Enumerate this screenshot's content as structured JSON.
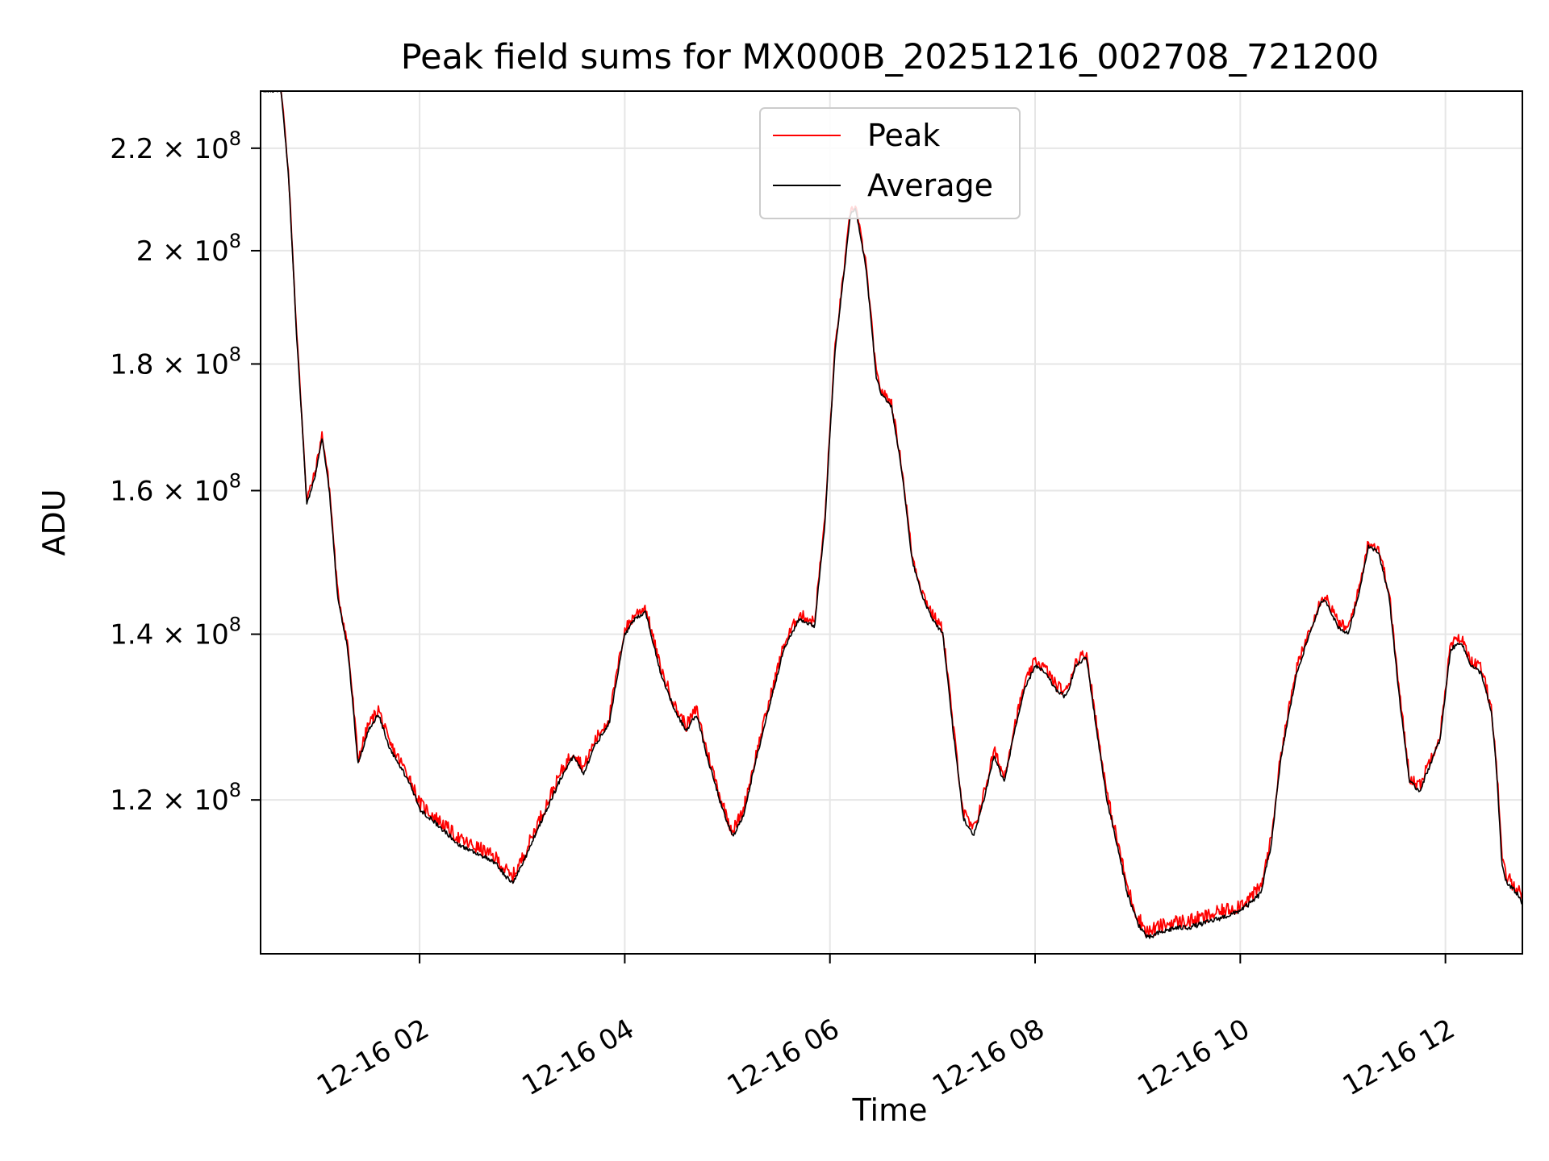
{
  "chart_data": {
    "type": "line",
    "title": "Peak field sums for MX000B_20251216_002708_721200",
    "xlabel": "Time",
    "ylabel": "ADU",
    "yscale": "log",
    "grid": true,
    "legend_position": "top-center",
    "x_range_hours": [
      0.45,
      12.75
    ],
    "ylim": [
      104000000,
      232000000
    ],
    "x_ticks": [
      {
        "hour": 2,
        "label": "12-16 02"
      },
      {
        "hour": 4,
        "label": "12-16 04"
      },
      {
        "hour": 6,
        "label": "12-16 06"
      },
      {
        "hour": 8,
        "label": "12-16 08"
      },
      {
        "hour": 10,
        "label": "12-16 10"
      },
      {
        "hour": 12,
        "label": "12-16 12"
      }
    ],
    "y_ticks": [
      {
        "value": 120000000,
        "mantissa": "1.2",
        "exp": "8"
      },
      {
        "value": 140000000,
        "mantissa": "1.4",
        "exp": "8"
      },
      {
        "value": 160000000,
        "mantissa": "1.6",
        "exp": "8"
      },
      {
        "value": 180000000,
        "mantissa": "1.8",
        "exp": "8"
      },
      {
        "value": 200000000,
        "mantissa": "2",
        "exp": "8"
      },
      {
        "value": 220000000,
        "mantissa": "2.2",
        "exp": "8"
      }
    ],
    "tick_times_sign": "×",
    "tick_base": "10",
    "series": [
      {
        "name": "Peak",
        "color": "#ff0000",
        "offset": 600000,
        "noise": 1500000
      },
      {
        "name": "Average",
        "color": "#000000",
        "offset": 0,
        "noise": 500000
      }
    ],
    "anchor_points_hours_adu": [
      [
        0.45,
        232000000
      ],
      [
        0.65,
        232000000
      ],
      [
        0.72,
        215000000
      ],
      [
        0.8,
        185000000
      ],
      [
        0.9,
        158000000
      ],
      [
        0.98,
        162000000
      ],
      [
        1.05,
        168000000
      ],
      [
        1.12,
        160000000
      ],
      [
        1.2,
        145000000
      ],
      [
        1.3,
        138000000
      ],
      [
        1.4,
        124000000
      ],
      [
        1.5,
        128000000
      ],
      [
        1.6,
        130000000
      ],
      [
        1.7,
        126000000
      ],
      [
        1.8,
        124000000
      ],
      [
        1.9,
        122000000
      ],
      [
        2.0,
        119000000
      ],
      [
        2.2,
        117000000
      ],
      [
        2.4,
        115000000
      ],
      [
        2.6,
        114000000
      ],
      [
        2.75,
        113000000
      ],
      [
        2.9,
        111000000
      ],
      [
        3.0,
        113000000
      ],
      [
        3.2,
        118000000
      ],
      [
        3.4,
        123000000
      ],
      [
        3.5,
        125000000
      ],
      [
        3.6,
        123000000
      ],
      [
        3.7,
        126000000
      ],
      [
        3.85,
        129000000
      ],
      [
        4.0,
        140000000
      ],
      [
        4.1,
        142000000
      ],
      [
        4.2,
        143000000
      ],
      [
        4.35,
        135000000
      ],
      [
        4.5,
        130000000
      ],
      [
        4.6,
        128000000
      ],
      [
        4.7,
        130000000
      ],
      [
        4.8,
        125000000
      ],
      [
        4.95,
        119000000
      ],
      [
        5.05,
        116000000
      ],
      [
        5.15,
        118000000
      ],
      [
        5.35,
        128000000
      ],
      [
        5.55,
        138000000
      ],
      [
        5.7,
        142000000
      ],
      [
        5.85,
        141000000
      ],
      [
        5.95,
        155000000
      ],
      [
        6.05,
        182000000
      ],
      [
        6.15,
        198000000
      ],
      [
        6.2,
        207000000
      ],
      [
        6.25,
        208000000
      ],
      [
        6.35,
        197000000
      ],
      [
        6.45,
        178000000
      ],
      [
        6.5,
        175000000
      ],
      [
        6.6,
        173000000
      ],
      [
        6.7,
        163000000
      ],
      [
        6.8,
        150000000
      ],
      [
        6.9,
        145000000
      ],
      [
        7.0,
        142000000
      ],
      [
        7.1,
        140000000
      ],
      [
        7.2,
        128000000
      ],
      [
        7.3,
        118000000
      ],
      [
        7.4,
        116000000
      ],
      [
        7.5,
        120000000
      ],
      [
        7.6,
        125000000
      ],
      [
        7.7,
        122000000
      ],
      [
        7.8,
        128000000
      ],
      [
        7.9,
        133000000
      ],
      [
        8.0,
        136000000
      ],
      [
        8.1,
        135000000
      ],
      [
        8.2,
        133000000
      ],
      [
        8.3,
        132000000
      ],
      [
        8.4,
        136000000
      ],
      [
        8.5,
        137000000
      ],
      [
        8.6,
        128000000
      ],
      [
        8.7,
        120000000
      ],
      [
        8.8,
        115000000
      ],
      [
        8.9,
        110000000
      ],
      [
        9.0,
        107000000
      ],
      [
        9.1,
        105500000
      ],
      [
        9.2,
        106000000
      ],
      [
        9.35,
        106500000
      ],
      [
        9.5,
        106600000
      ],
      [
        9.65,
        107000000
      ],
      [
        9.8,
        107500000
      ],
      [
        9.95,
        108000000
      ],
      [
        10.1,
        109000000
      ],
      [
        10.2,
        110000000
      ],
      [
        10.3,
        115000000
      ],
      [
        10.4,
        125000000
      ],
      [
        10.55,
        135000000
      ],
      [
        10.7,
        141000000
      ],
      [
        10.8,
        144500000
      ],
      [
        10.85,
        144000000
      ],
      [
        10.95,
        141000000
      ],
      [
        11.05,
        140000000
      ],
      [
        11.15,
        145000000
      ],
      [
        11.25,
        152000000
      ],
      [
        11.35,
        151000000
      ],
      [
        11.45,
        145000000
      ],
      [
        11.55,
        132000000
      ],
      [
        11.65,
        122000000
      ],
      [
        11.75,
        121000000
      ],
      [
        11.85,
        124000000
      ],
      [
        11.95,
        127000000
      ],
      [
        12.05,
        138000000
      ],
      [
        12.15,
        139000000
      ],
      [
        12.25,
        136000000
      ],
      [
        12.35,
        135000000
      ],
      [
        12.45,
        130000000
      ],
      [
        12.5,
        123000000
      ],
      [
        12.55,
        113000000
      ],
      [
        12.6,
        111000000
      ],
      [
        12.7,
        110000000
      ],
      [
        12.75,
        109000000
      ]
    ]
  }
}
